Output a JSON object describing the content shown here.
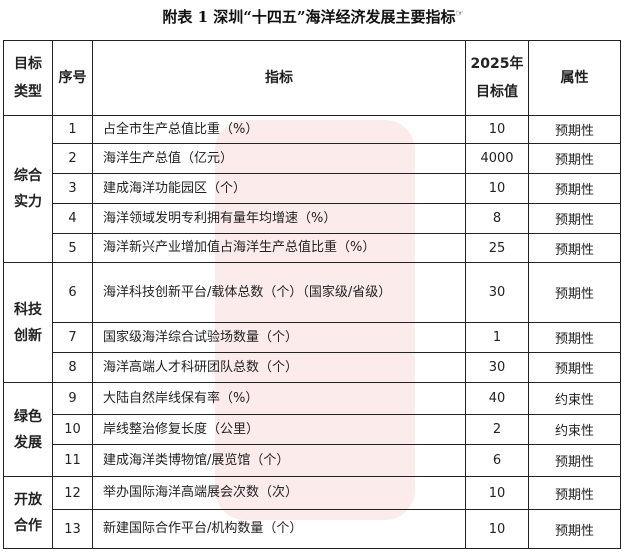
{
  "title": "附表 1 深圳“十四五”海洋经济发展主要指标",
  "title_mark": "☞",
  "headers": {
    "type": "目标类型",
    "no": "序号",
    "indicator": "指标",
    "target": "2025年目标值",
    "attr": "属性"
  },
  "categories": [
    "综合实力",
    "科技创新",
    "绿色发展",
    "开放合作"
  ],
  "rows": [
    {
      "no": "1",
      "indicator": "占全市生产总值比重（%）",
      "target": "10",
      "attr": "预期性"
    },
    {
      "no": "2",
      "indicator": "海洋生产总值（亿元）",
      "target": "4000",
      "attr": "预期性"
    },
    {
      "no": "3",
      "indicator": "建成海洋功能园区（个）",
      "target": "10",
      "attr": "预期性"
    },
    {
      "no": "4",
      "indicator": "海洋领域发明专利拥有量年均增速（%）",
      "target": "8",
      "attr": "预期性"
    },
    {
      "no": "5",
      "indicator": "海洋新兴产业增加值占海洋生产总值比重（%）",
      "target": "25",
      "attr": "预期性"
    },
    {
      "no": "6",
      "indicator": "海洋科技创新平台/载体总数（个）（国家级/省级）",
      "target": "30",
      "attr": "预期性"
    },
    {
      "no": "7",
      "indicator": "国家级海洋综合试验场数量（个）",
      "target": "1",
      "attr": "预期性"
    },
    {
      "no": "8",
      "indicator": "海洋高端人才科研团队总数（个）",
      "target": "30",
      "attr": "预期性"
    },
    {
      "no": "9",
      "indicator": "大陆自然岸线保有率（%）",
      "target": "40",
      "attr": "约束性"
    },
    {
      "no": "10",
      "indicator": "岸线整治修复长度（公里）",
      "target": "2",
      "attr": "约束性"
    },
    {
      "no": "11",
      "indicator": "建成海洋类博物馆/展览馆（个）",
      "target": "6",
      "attr": "预期性"
    },
    {
      "no": "12",
      "indicator": "举办国际海洋高端展会次数（次）",
      "target": "10",
      "attr": "预期性"
    },
    {
      "no": "13",
      "indicator": "新建国际合作平台/机构数量（个）",
      "target": "10",
      "attr": "预期性"
    }
  ]
}
